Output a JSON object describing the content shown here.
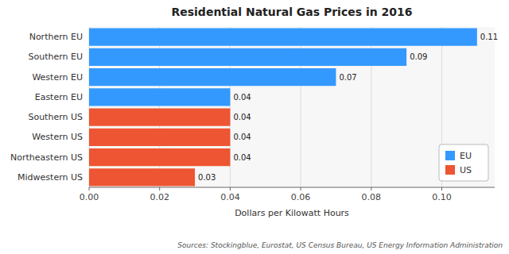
{
  "chart_data": {
    "type": "bar",
    "orientation": "horizontal",
    "title": "Residential Natural Gas Prices in 2016",
    "x_label": "Dollars per Kilowatt Hours",
    "source": "Sources: Stockingblue, Eurostat, US Census Bureau, US Energy Information Administration",
    "categories": [
      "Northern EU",
      "Southern EU",
      "Western EU",
      "Eastern EU",
      "Southern US",
      "Western US",
      "Northeastern US",
      "Midwestern US"
    ],
    "values": [
      0.11,
      0.09,
      0.07,
      0.04,
      0.04,
      0.04,
      0.04,
      0.03
    ],
    "colors": [
      "#3399FF",
      "#3399FF",
      "#3399FF",
      "#3399FF",
      "#EE5533",
      "#EE5533",
      "#EE5533",
      "#EE5533"
    ],
    "xlim": [
      0,
      0.115
    ],
    "xticks": [
      {
        "value": 0,
        "label": "0.00"
      },
      0.02,
      0.04,
      0.06,
      0.08,
      {
        "value": 0.1,
        "label": "0.10"
      }
    ],
    "grid": true,
    "data_labels": true,
    "legend": "lower right",
    "legend_items": [
      {
        "name": "EU",
        "color": "#3399FF"
      },
      {
        "name": "US",
        "color": "#EE5533"
      }
    ]
  }
}
